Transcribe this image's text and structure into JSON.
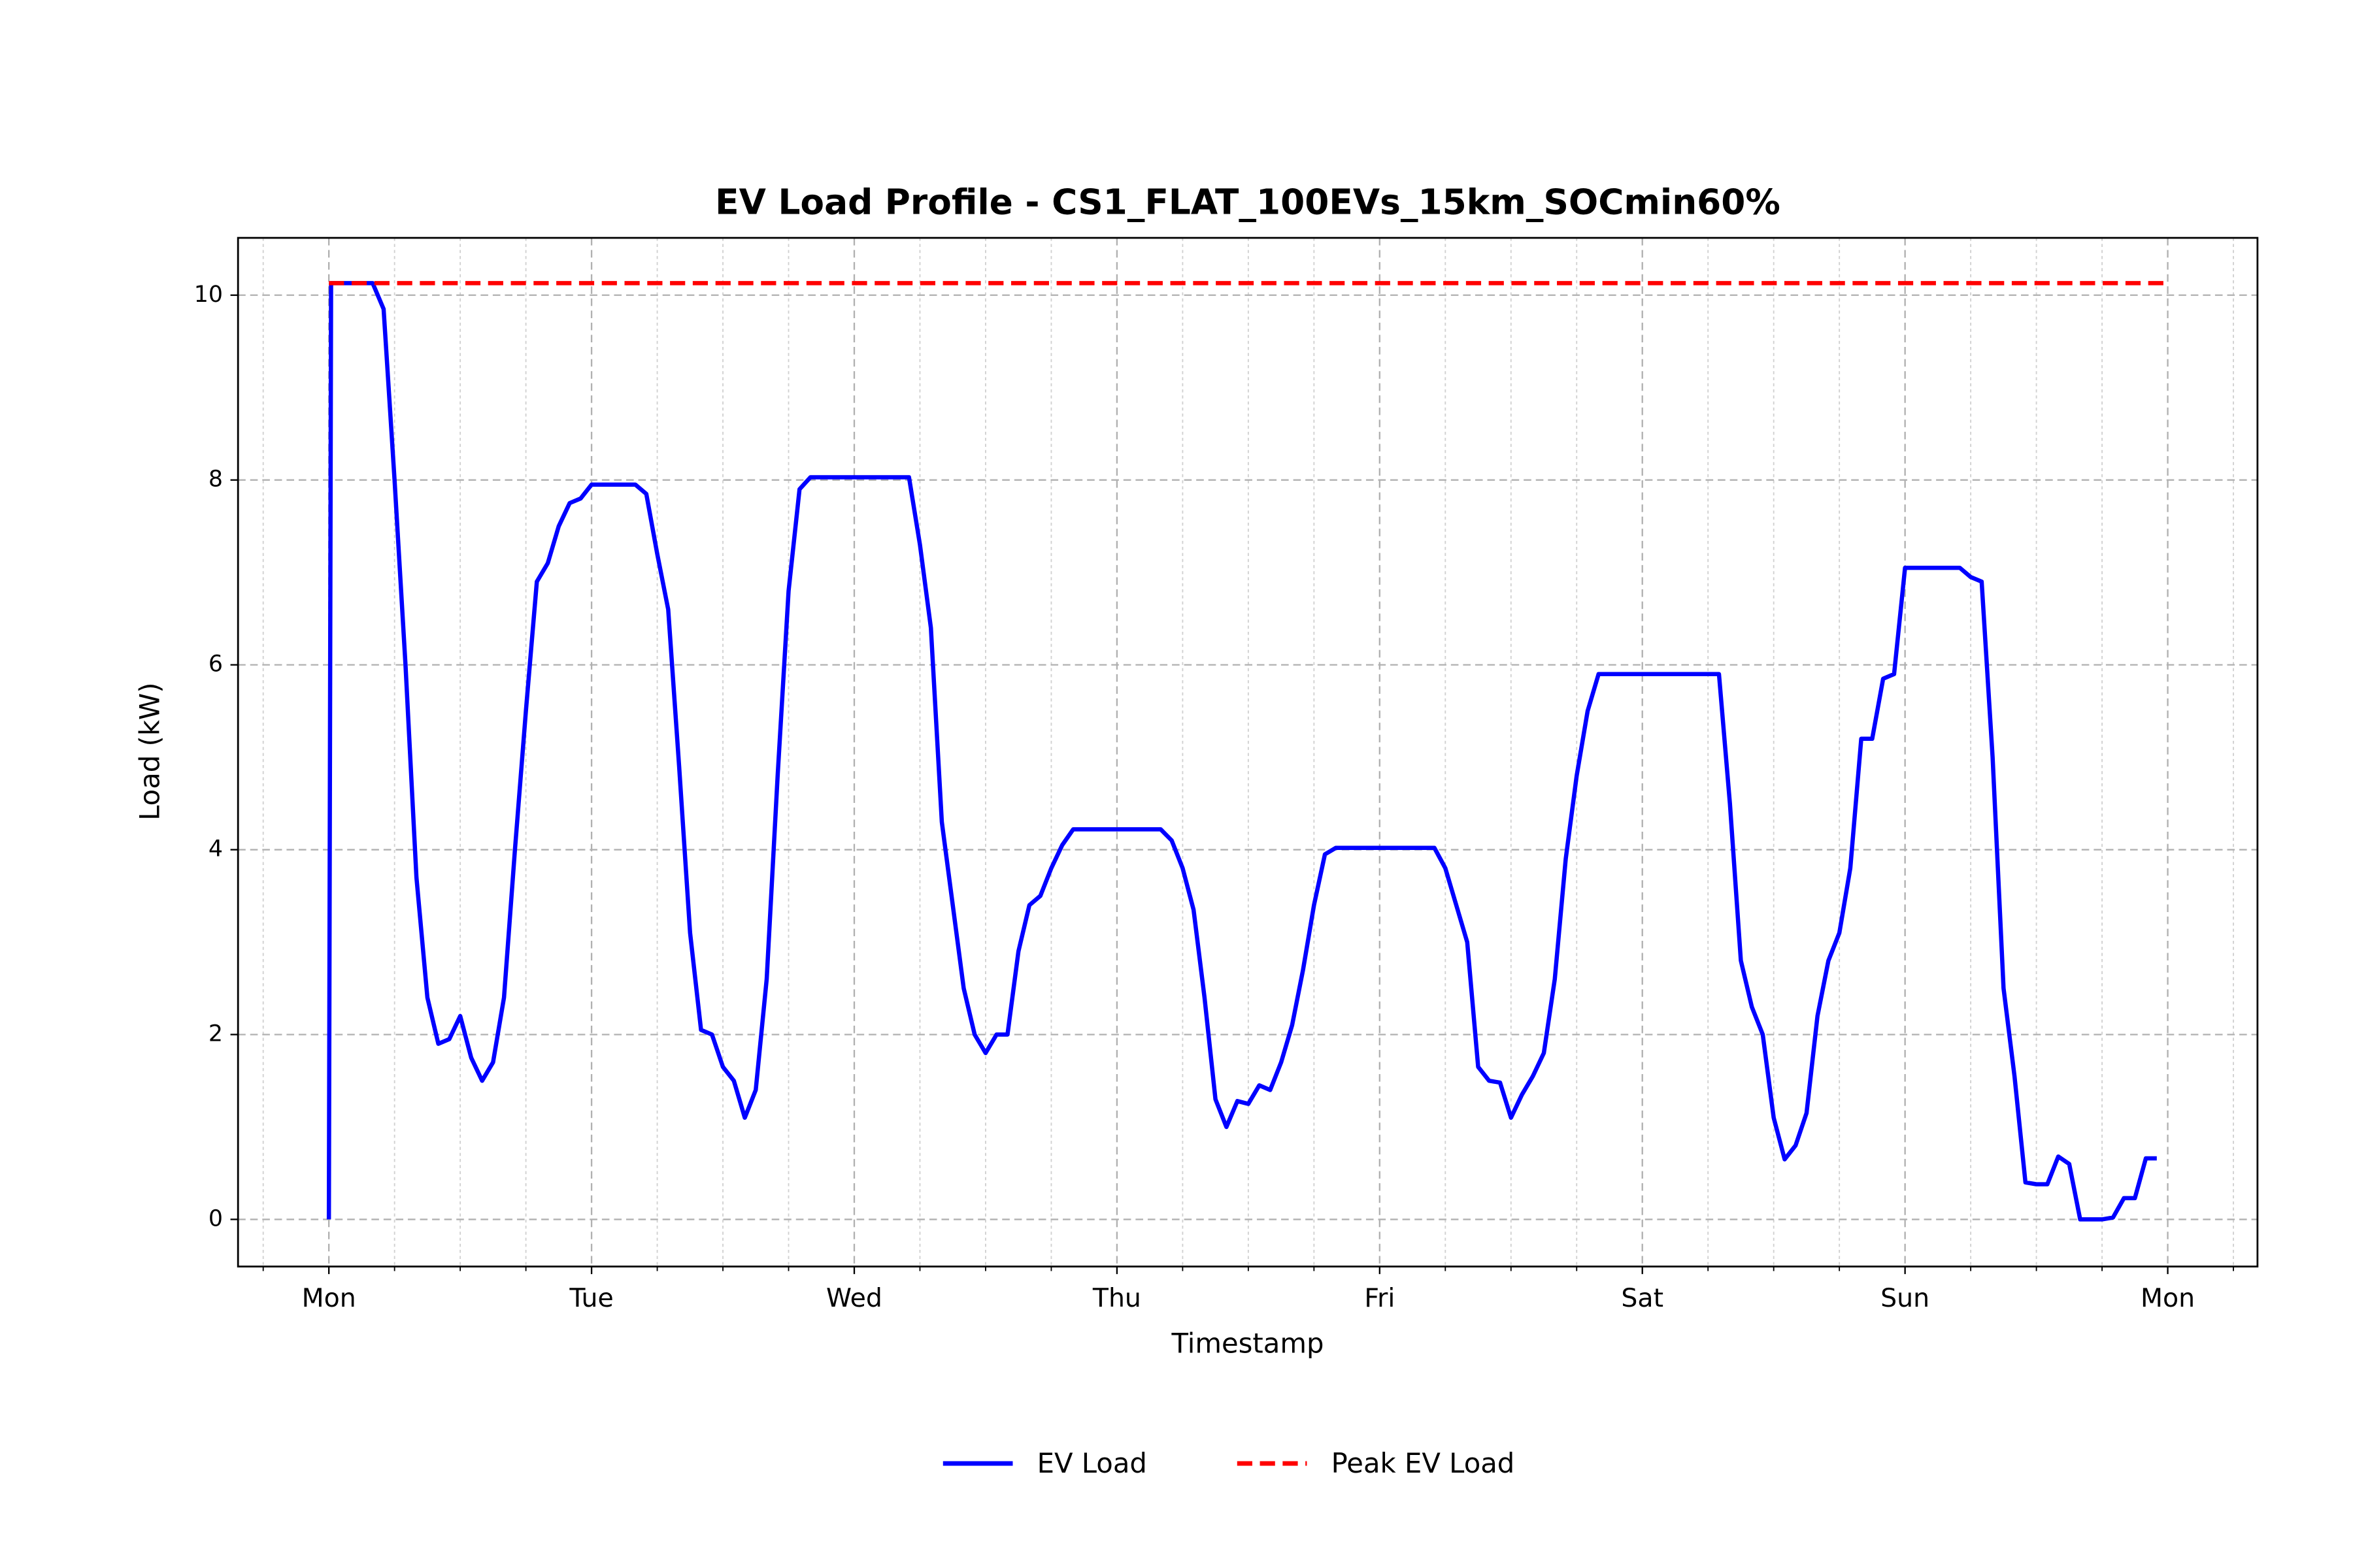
{
  "chart_data": {
    "type": "line",
    "title": "EV Load Profile - CS1_FLAT_100EVs_15km_SOCmin60%",
    "xlabel": "Timestamp",
    "ylabel": "Load (kW)",
    "xlim": [
      -8.3,
      176.2
    ],
    "ylim": [
      -0.51,
      10.62
    ],
    "xticks": [
      {
        "value": 0,
        "label": "Mon"
      },
      {
        "value": 24,
        "label": "Tue"
      },
      {
        "value": 48,
        "label": "Wed"
      },
      {
        "value": 72,
        "label": "Thu"
      },
      {
        "value": 96,
        "label": "Fri"
      },
      {
        "value": 120,
        "label": "Sat"
      },
      {
        "value": 144,
        "label": "Sun"
      },
      {
        "value": 168,
        "label": "Mon"
      }
    ],
    "xminor_ticks": [
      -6,
      6,
      12,
      18,
      30,
      36,
      42,
      54,
      60,
      66,
      78,
      84,
      90,
      102,
      108,
      114,
      126,
      132,
      138,
      150,
      156,
      162,
      174
    ],
    "yticks": [
      0,
      2,
      4,
      6,
      8,
      10
    ],
    "grid": true,
    "legend": "bottom",
    "series": [
      {
        "name": "EV Load",
        "color": "#0000ff",
        "style": "solid",
        "x": [
          0,
          0.2,
          1,
          2,
          3,
          4,
          5,
          6,
          7,
          8,
          9,
          10,
          11,
          12,
          13,
          14,
          15,
          16,
          17,
          18,
          19,
          20,
          21,
          22,
          23,
          24,
          25,
          26,
          27,
          28,
          29,
          30,
          31,
          32,
          33,
          34,
          35,
          36,
          37,
          38,
          39,
          40,
          41,
          42,
          43,
          44,
          45,
          46,
          47,
          48,
          49,
          50,
          51,
          52,
          53,
          54,
          55,
          56,
          57,
          58,
          59,
          60,
          61,
          62,
          63,
          64,
          65,
          66,
          67,
          68,
          69,
          70,
          71,
          72,
          73,
          74,
          75,
          76,
          77,
          78,
          79,
          80,
          81,
          82,
          83,
          84,
          85,
          86,
          87,
          88,
          89,
          90,
          91,
          92,
          93,
          94,
          95,
          96,
          97,
          98,
          99,
          100,
          101,
          102,
          103,
          104,
          105,
          106,
          107,
          108,
          109,
          110,
          111,
          112,
          113,
          114,
          115,
          116,
          117,
          118,
          119,
          120,
          121,
          122,
          123,
          124,
          125,
          126,
          127,
          128,
          129,
          130,
          131,
          132,
          133,
          134,
          135,
          136,
          137,
          138,
          139,
          140,
          141,
          142,
          143,
          144,
          145,
          146,
          147,
          148,
          149,
          150,
          151,
          152,
          153,
          154,
          155,
          156,
          157,
          158,
          159,
          160,
          161,
          162,
          163,
          164,
          165,
          166,
          167
        ],
        "values": [
          0,
          10.13,
          10.13,
          10.13,
          10.13,
          10.13,
          9.85,
          8.0,
          6.0,
          3.7,
          2.4,
          1.9,
          1.95,
          2.2,
          1.75,
          1.5,
          1.7,
          2.4,
          4.0,
          5.5,
          6.9,
          7.1,
          7.5,
          7.75,
          7.8,
          7.95,
          7.95,
          7.95,
          7.95,
          7.95,
          7.85,
          7.2,
          6.6,
          4.9,
          3.1,
          2.05,
          2.0,
          1.65,
          1.5,
          1.1,
          1.4,
          2.6,
          4.8,
          6.8,
          7.9,
          8.03,
          8.03,
          8.03,
          8.03,
          8.03,
          8.03,
          8.03,
          8.03,
          8.03,
          8.03,
          7.3,
          6.4,
          4.3,
          3.4,
          2.5,
          2.0,
          1.8,
          2.0,
          2.0,
          2.9,
          3.4,
          3.5,
          3.8,
          4.05,
          4.22,
          4.22,
          4.22,
          4.22,
          4.22,
          4.22,
          4.22,
          4.22,
          4.22,
          4.1,
          3.8,
          3.35,
          2.4,
          1.3,
          1.0,
          1.28,
          1.25,
          1.45,
          1.4,
          1.7,
          2.1,
          2.7,
          3.4,
          3.95,
          4.02,
          4.02,
          4.02,
          4.02,
          4.02,
          4.02,
          4.02,
          4.02,
          4.02,
          4.02,
          3.8,
          3.4,
          3.0,
          1.65,
          1.5,
          1.48,
          1.1,
          1.35,
          1.55,
          1.8,
          2.6,
          3.9,
          4.8,
          5.5,
          5.9,
          5.9,
          5.9,
          5.9,
          5.9,
          5.9,
          5.9,
          5.9,
          5.9,
          5.9,
          5.9,
          5.9,
          4.5,
          2.8,
          2.3,
          2.0,
          1.1,
          0.65,
          0.8,
          1.15,
          2.2,
          2.8,
          3.1,
          3.8,
          5.2,
          5.2,
          5.85,
          5.9,
          7.05,
          7.05,
          7.05,
          7.05,
          7.05,
          7.05,
          6.95,
          6.9,
          5.0,
          2.5,
          1.55,
          0.4,
          0.38,
          0.38,
          0.68,
          0.6,
          0,
          0,
          0,
          0.02,
          0.23,
          0.23,
          0.66,
          0.66
        ]
      },
      {
        "name": "Peak EV Load",
        "color": "#ff0000",
        "style": "dashed",
        "x": [
          0,
          168
        ],
        "values": [
          10.13,
          10.13
        ]
      }
    ]
  }
}
